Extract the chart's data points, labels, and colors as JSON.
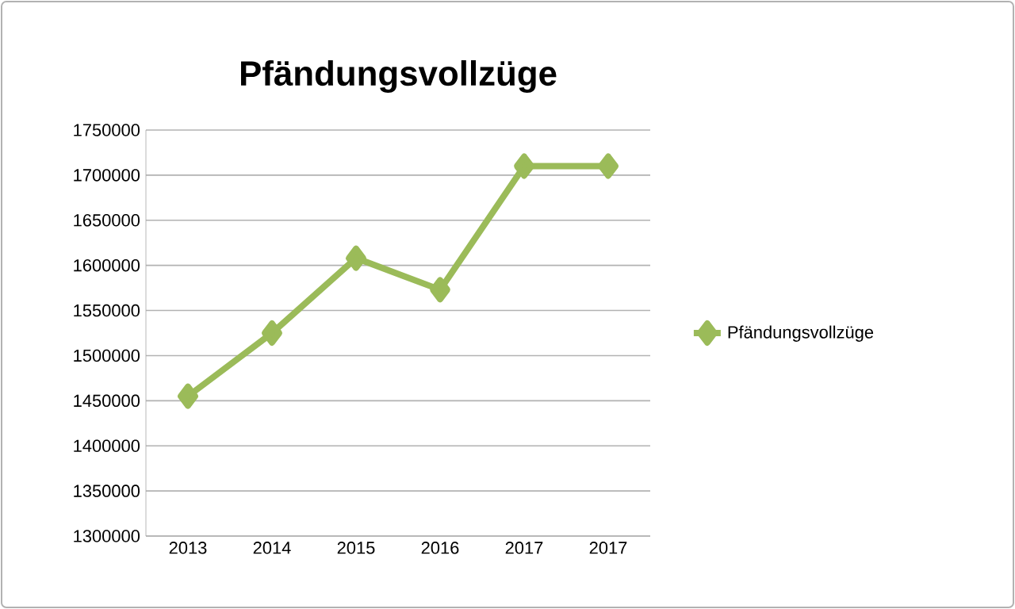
{
  "chart_data": {
    "type": "line",
    "title": "Pfändungsvollzüge",
    "categories": [
      "2013",
      "2014",
      "2015",
      "2016",
      "2017",
      "2017"
    ],
    "series": [
      {
        "name": "Pfändungsvollzüge",
        "color": "#9bbb59",
        "values": [
          1455000,
          1525000,
          1608000,
          1573000,
          1710000,
          1710000
        ]
      }
    ],
    "ylim": [
      1300000,
      1750000
    ],
    "yticks": [
      1300000,
      1350000,
      1400000,
      1450000,
      1500000,
      1550000,
      1600000,
      1650000,
      1700000,
      1750000
    ],
    "grid": "y",
    "legend": "right",
    "marker": "diamond",
    "line_style": "solid"
  }
}
